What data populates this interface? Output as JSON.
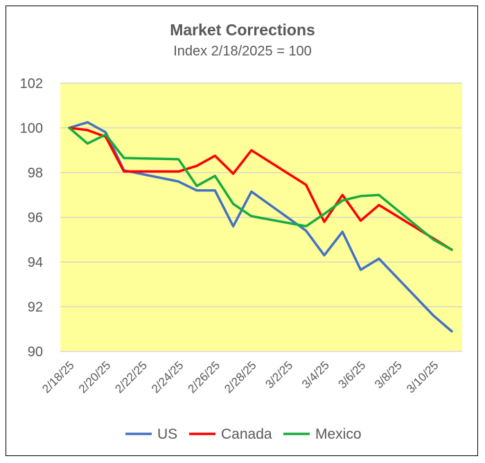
{
  "chart_data": {
    "type": "line",
    "title": "Market Corrections",
    "subtitle": "Index 2/18/2025 = 100",
    "xlabel": "",
    "ylabel": "",
    "ylim": [
      90,
      102
    ],
    "yticks": [
      90,
      92,
      94,
      96,
      98,
      100,
      102
    ],
    "x_start": "2/18/25",
    "x_end": "3/11/25",
    "xticks": [
      "2/18/25",
      "2/20/25",
      "2/22/25",
      "2/24/25",
      "2/26/25",
      "2/28/25",
      "3/2/25",
      "3/4/25",
      "3/6/25",
      "3/8/25",
      "3/10/25"
    ],
    "grid": true,
    "legend_position": "bottom",
    "plot_background": "#FFFF99",
    "series": [
      {
        "name": "US",
        "color": "#4472C4",
        "x": [
          "2/18/25",
          "2/19/25",
          "2/20/25",
          "2/21/25",
          "2/24/25",
          "2/25/25",
          "2/26/25",
          "2/27/25",
          "2/28/25",
          "3/3/25",
          "3/4/25",
          "3/5/25",
          "3/6/25",
          "3/7/25",
          "3/10/25",
          "3/11/25"
        ],
        "y": [
          100.0,
          100.25,
          99.8,
          98.1,
          97.6,
          97.2,
          97.2,
          95.6,
          97.15,
          95.4,
          94.3,
          95.35,
          93.65,
          94.15,
          91.6,
          90.9
        ]
      },
      {
        "name": "Canada",
        "color": "#FF0000",
        "x": [
          "2/18/25",
          "2/19/25",
          "2/20/25",
          "2/21/25",
          "2/24/25",
          "2/25/25",
          "2/26/25",
          "2/27/25",
          "2/28/25",
          "3/3/25",
          "3/4/25",
          "3/5/25",
          "3/6/25",
          "3/7/25",
          "3/10/25",
          "3/11/25"
        ],
        "y": [
          100.0,
          99.9,
          99.6,
          98.05,
          98.05,
          98.3,
          98.75,
          97.95,
          99.0,
          97.45,
          95.8,
          97.0,
          95.85,
          96.55,
          95.05,
          94.55
        ]
      },
      {
        "name": "Mexico",
        "color": "#1AAB40",
        "x": [
          "2/18/25",
          "2/19/25",
          "2/20/25",
          "2/21/25",
          "2/24/25",
          "2/25/25",
          "2/26/25",
          "2/27/25",
          "2/28/25",
          "3/3/25",
          "3/4/25",
          "3/5/25",
          "3/6/25",
          "3/7/25",
          "3/10/25",
          "3/11/25"
        ],
        "y": [
          100.0,
          99.3,
          99.7,
          98.65,
          98.6,
          97.4,
          97.85,
          96.6,
          96.05,
          95.6,
          96.15,
          96.75,
          96.95,
          97.0,
          95.0,
          94.55
        ]
      }
    ]
  }
}
